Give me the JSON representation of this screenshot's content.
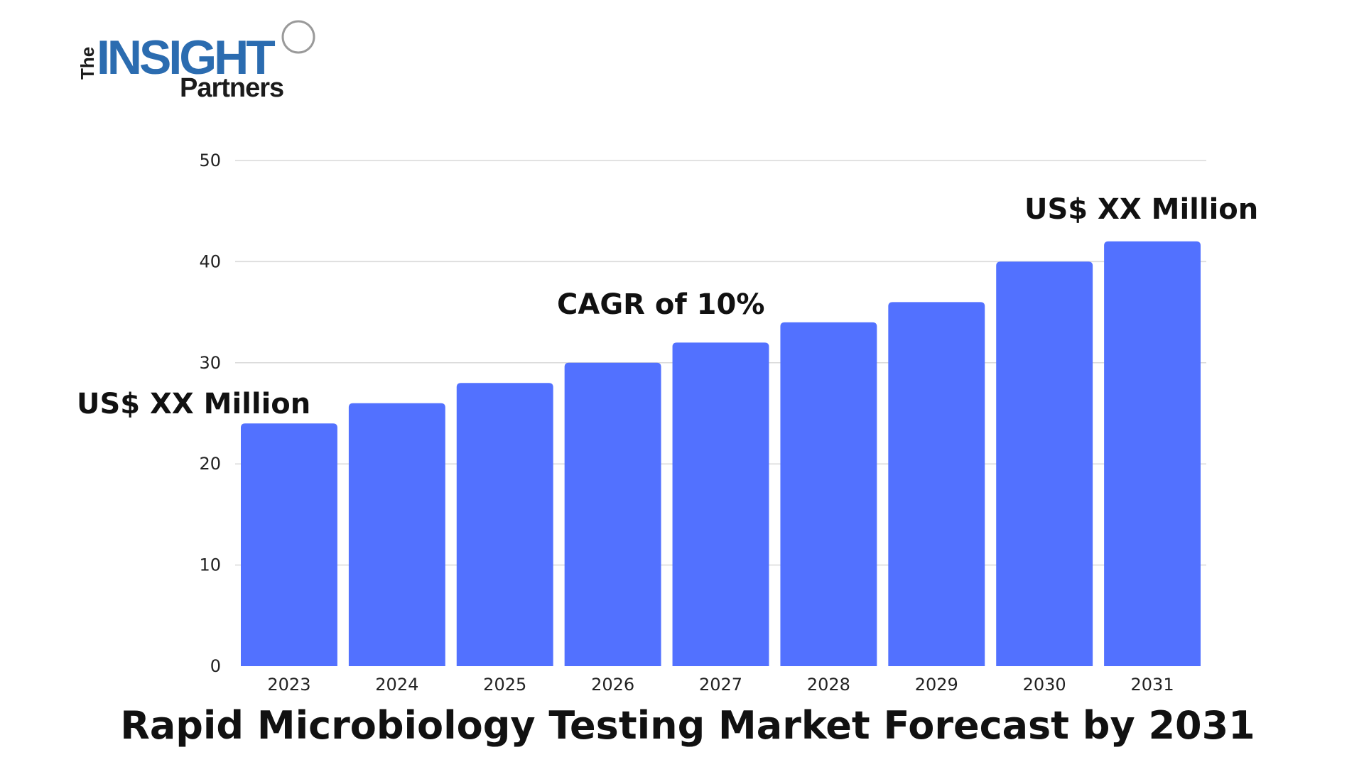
{
  "logo": {
    "the": "The",
    "insight": "INSIGHT",
    "partners": "Partners",
    "color": "#2b6cb0"
  },
  "chart_data": {
    "type": "bar",
    "title": "Rapid Microbiology Testing Market Forecast by 2031",
    "xlabel": "",
    "ylabel": "",
    "categories": [
      "2023",
      "2024",
      "2025",
      "2026",
      "2027",
      "2028",
      "2029",
      "2030",
      "2031"
    ],
    "values": [
      24,
      26,
      28,
      30,
      32,
      34,
      36,
      40,
      42
    ],
    "ylim": [
      0,
      50
    ],
    "yticks": [
      0,
      10,
      20,
      30,
      40,
      50
    ],
    "grid": true,
    "bar_color": "#5271ff",
    "annotations": {
      "start": "US$ XX Million",
      "cagr": "CAGR of 10%",
      "end": "US$ XX Million"
    }
  }
}
